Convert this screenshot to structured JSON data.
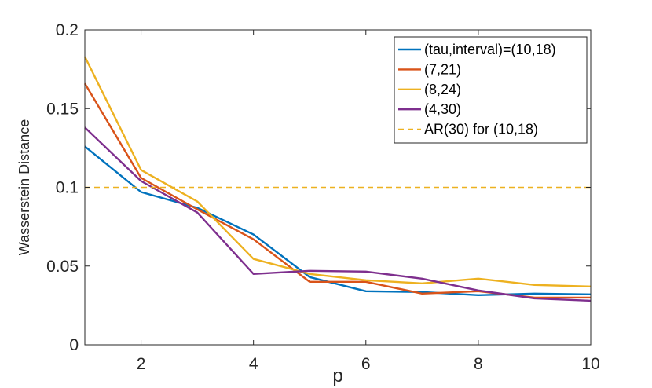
{
  "chart_data": {
    "type": "line",
    "xlabel": "p",
    "ylabel": "Wasserstein Distance",
    "xlim": [
      1,
      10
    ],
    "ylim": [
      0,
      0.2
    ],
    "xticks": [
      2,
      4,
      6,
      8,
      10
    ],
    "yticks": [
      0,
      0.05,
      0.1,
      0.15,
      0.2
    ],
    "xtick_labels": [
      "2",
      "4",
      "6",
      "8",
      "10"
    ],
    "ytick_labels": [
      "0",
      "0.05",
      "0.1",
      "0.15",
      "0.2"
    ],
    "grid": false,
    "legend_position": "top-right",
    "x": [
      1,
      2,
      3,
      4,
      5,
      6,
      7,
      8,
      9,
      10
    ],
    "series": [
      {
        "name": "(tau,interval)=(10,18)",
        "color": "#0072BD",
        "style": "solid",
        "values": [
          0.126,
          0.097,
          0.087,
          0.07,
          0.043,
          0.034,
          0.0335,
          0.0315,
          0.0325,
          0.032
        ]
      },
      {
        "name": "(7,21)",
        "color": "#D95319",
        "style": "solid",
        "values": [
          0.166,
          0.106,
          0.086,
          0.067,
          0.04,
          0.04,
          0.0325,
          0.034,
          0.03,
          0.03
        ]
      },
      {
        "name": "(8,24)",
        "color": "#EDB120",
        "style": "solid",
        "values": [
          0.183,
          0.111,
          0.091,
          0.0545,
          0.045,
          0.041,
          0.039,
          0.042,
          0.038,
          0.037
        ]
      },
      {
        "name": "(4,30)",
        "color": "#7E2F8E",
        "style": "solid",
        "values": [
          0.138,
          0.104,
          0.084,
          0.045,
          0.047,
          0.0465,
          0.042,
          0.0345,
          0.0295,
          0.028
        ]
      },
      {
        "name": "AR(30) for (10,18)",
        "color": "#EDB120",
        "style": "dashed",
        "values": [
          0.1,
          0.1,
          0.1,
          0.1,
          0.1,
          0.1,
          0.1,
          0.1,
          0.1,
          0.1
        ]
      }
    ]
  }
}
